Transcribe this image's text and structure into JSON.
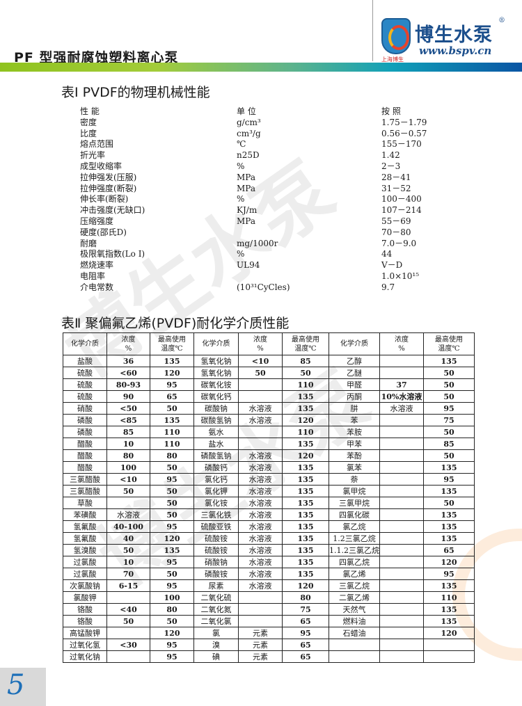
{
  "header": {
    "title": "PF 型强耐腐蚀塑料离心泵",
    "brand": "博生水泵",
    "registered": "®",
    "url": "www.bspv.cn",
    "brand_sub": "上海博生",
    "band_colors": [
      "#8fc31f",
      "#0a55a4"
    ]
  },
  "table1": {
    "title": "表Ⅰ  PVDF的物理机械性能",
    "headers": {
      "name": "性  能",
      "unit": "单  位",
      "value": "按  照"
    },
    "rows": [
      {
        "name": "密度",
        "unit": "g/cm³",
        "value": "1.75－1.79"
      },
      {
        "name": "比度",
        "unit": "cm³/g",
        "value": "0.56－0.57"
      },
      {
        "name": "熔点范围",
        "unit": "℃",
        "value": "155－170"
      },
      {
        "name": "折光率",
        "unit": "n25D",
        "value": "1.42"
      },
      {
        "name": "成型收缩率",
        "unit": "%",
        "value": "2－3"
      },
      {
        "name": "拉伸强发(压服)",
        "unit": "MPa",
        "value": "28－41"
      },
      {
        "name": "拉伸强度(断裂)",
        "unit": "MPa",
        "value": "31－52"
      },
      {
        "name": "伸长率(断裂)",
        "unit": "%",
        "value": "100－400"
      },
      {
        "name": "冲击强度(无缺口)",
        "unit": "KJ/m",
        "value": "107－214"
      },
      {
        "name": "压缩强度",
        "unit": "MPa",
        "value": "55－69"
      },
      {
        "name": "硬度(邵氏D)",
        "unit": "",
        "value": "70－80"
      },
      {
        "name": "耐磨",
        "unit": "mg/1000r",
        "value": "7.0－9.0"
      },
      {
        "name": "极限氧指数(Lo I)",
        "unit": "%",
        "value": "44"
      },
      {
        "name": "燃烧速率",
        "unit": "UL94",
        "value": "V－D"
      },
      {
        "name": "电阻率",
        "unit": "",
        "value": "1.0×10¹⁵"
      },
      {
        "name": "介电常数",
        "unit": "(10³¹CyCles)",
        "value": "9.7"
      }
    ]
  },
  "table2": {
    "title": "表Ⅱ  聚偏氟乙烯(PVDF)耐化学介质性能",
    "headers": [
      "化学介质",
      "浓度\n%",
      "最高使用\n温度℃",
      "化学介质",
      "浓度\n%",
      "最高使用\n温度℃",
      "化学介质",
      "浓度\n%",
      "最高使用\n温度℃"
    ],
    "rows": [
      [
        "盐酸",
        "36",
        "135",
        "氢氧化钠",
        "<10",
        "85",
        "乙醇",
        "",
        "135"
      ],
      [
        "硫酸",
        "<60",
        "120",
        "氢氧化钠",
        "50",
        "50",
        "乙醚",
        "",
        "50"
      ],
      [
        "硫酸",
        "80-93",
        "95",
        "碳氧化铵",
        "",
        "110",
        "甲醛",
        "37",
        "50"
      ],
      [
        "硫酸",
        "90",
        "65",
        "碳氧化钙",
        "",
        "135",
        "丙酮",
        "10%水溶液",
        "50"
      ],
      [
        "硝酸",
        "<50",
        "50",
        "碳酸钠",
        "水溶液",
        "135",
        "肼",
        "水溶液",
        "95"
      ],
      [
        "磷酸",
        "<85",
        "135",
        "碳酸氢钠",
        "水溶液",
        "120",
        "苯",
        "",
        "75"
      ],
      [
        "磷酸",
        "85",
        "110",
        "氨水",
        "",
        "110",
        "苯胺",
        "",
        "50"
      ],
      [
        "醋酸",
        "10",
        "110",
        "盐水",
        "",
        "135",
        "甲苯",
        "",
        "85"
      ],
      [
        "醋酸",
        "80",
        "80",
        "磷酸氢钠",
        "水溶液",
        "120",
        "苯酚",
        "",
        "50"
      ],
      [
        "醋酸",
        "100",
        "50",
        "磷酸钙",
        "水溶液",
        "135",
        "氯苯",
        "",
        "135"
      ],
      [
        "三氯醋酸",
        "<10",
        "95",
        "氯化钙",
        "水溶液",
        "135",
        "萘",
        "",
        "95"
      ],
      [
        "三氯醋酸",
        "50",
        "50",
        "氯化钾",
        "水溶液",
        "135",
        "氯甲烷",
        "",
        "135"
      ],
      [
        "草酸",
        "",
        "50",
        "氯化铵",
        "水溶液",
        "135",
        "三氯甲烷",
        "",
        "50"
      ],
      [
        "苯磺酸",
        "水溶液",
        "50",
        "三氯化铁",
        "水溶液",
        "135",
        "四氯化碳",
        "",
        "135"
      ],
      [
        "氢氟酸",
        "40-100",
        "95",
        "硫酸亚铁",
        "水溶液",
        "135",
        "氯乙烷",
        "",
        "135"
      ],
      [
        "氢氟酸",
        "40",
        "120",
        "硫酸铵",
        "水溶液",
        "135",
        "1.2三氯乙烷",
        "",
        "135"
      ],
      [
        "氢溴酸",
        "50",
        "135",
        "硫酸铵",
        "水溶液",
        "135",
        "1.1.2三氯乙烷",
        "",
        "65"
      ],
      [
        "过氯酸",
        "10",
        "95",
        "硝酸钠",
        "水溶液",
        "135",
        "四氯乙烷",
        "",
        "120"
      ],
      [
        "过氯酸",
        "70",
        "50",
        "磷酸铵",
        "水溶液",
        "135",
        "氯乙烯",
        "",
        "95"
      ],
      [
        "次氯酸钠",
        "6-15",
        "95",
        "尿素",
        "水溶液",
        "120",
        "三氯乙烷",
        "",
        "135"
      ],
      [
        "氯酸钾",
        "",
        "100",
        "二氧化硫",
        "",
        "80",
        "二氯乙烯",
        "",
        "110"
      ],
      [
        "铬酸",
        "<40",
        "80",
        "二氧化氮",
        "",
        "75",
        "天然气",
        "",
        "135"
      ],
      [
        "铬酸",
        "50",
        "50",
        "二氧化氯",
        "",
        "65",
        "燃料油",
        "",
        "135"
      ],
      [
        "高锰酸钾",
        "",
        "120",
        "氯",
        "元素",
        "95",
        "石蜡油",
        "",
        "120"
      ],
      [
        "过氧化氢",
        "<30",
        "95",
        "溴",
        "元素",
        "65",
        "",
        "",
        ""
      ],
      [
        "过氧化钠",
        "",
        "95",
        "碘",
        "元素",
        "65",
        "",
        "",
        ""
      ]
    ]
  },
  "footer": {
    "page_number": "5"
  }
}
